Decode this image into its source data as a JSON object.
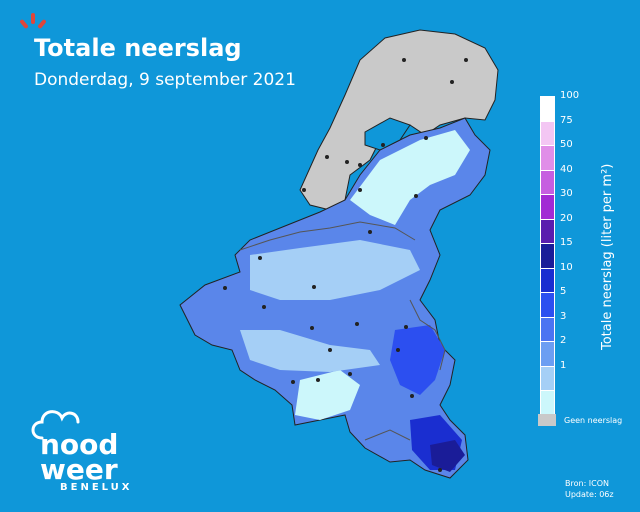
{
  "header": {
    "title": "Totale neerslag",
    "subtitle": "Donderdag, 9 september 2021"
  },
  "legend": {
    "label": "Totale neerslag (liter per m²)",
    "items": [
      {
        "value": "100",
        "color": "#ffffff"
      },
      {
        "value": "75",
        "color": "#f3c6f3"
      },
      {
        "value": "50",
        "color": "#e08ee8"
      },
      {
        "value": "40",
        "color": "#c65ee0"
      },
      {
        "value": "30",
        "color": "#a22ad4"
      },
      {
        "value": "20",
        "color": "#5a1cae"
      },
      {
        "value": "15",
        "color": "#1a1c98"
      },
      {
        "value": "10",
        "color": "#1a2ed0"
      },
      {
        "value": "5",
        "color": "#2c4ff0"
      },
      {
        "value": "3",
        "color": "#4b74f2"
      },
      {
        "value": "2",
        "color": "#6c9ef2"
      },
      {
        "value": "1",
        "color": "#a5cff6"
      },
      {
        "value": "",
        "color": "#ccf7fb"
      }
    ],
    "no_data_label": "Geen neerslag",
    "no_data_color": "#c9c9c9"
  },
  "footer": {
    "source": "Bron: ICON",
    "update": "Update: 06z"
  },
  "brand": {
    "line1": "nood",
    "line2": "weer",
    "sub": "BENELUX"
  },
  "colors": {
    "background": "#0f97d9",
    "accent": "#e0463a"
  }
}
